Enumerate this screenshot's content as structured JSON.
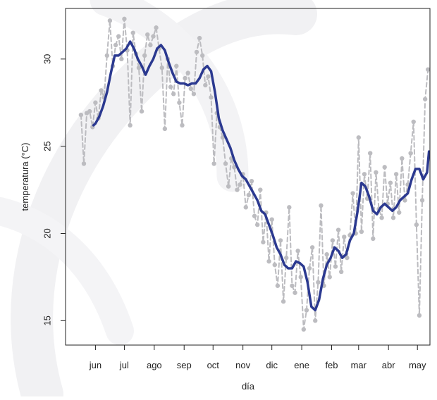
{
  "chart_data": {
    "type": "line",
    "xlabel": "día",
    "ylabel": "temperatura (°C)",
    "xlim": [
      -31,
      347
    ],
    "ylim": [
      13.6,
      32.9
    ],
    "xticks": [
      {
        "value": 0,
        "label": "jun"
      },
      {
        "value": 30,
        "label": "jul"
      },
      {
        "value": 61,
        "label": "ago"
      },
      {
        "value": 92,
        "label": "sep"
      },
      {
        "value": 122,
        "label": "oct"
      },
      {
        "value": 153,
        "label": "nov"
      },
      {
        "value": 183,
        "label": "dic"
      },
      {
        "value": 214,
        "label": "ene"
      },
      {
        "value": 245,
        "label": "feb"
      },
      {
        "value": 273,
        "label": "mar"
      },
      {
        "value": 304,
        "label": "abr"
      },
      {
        "value": 334,
        "label": "may"
      }
    ],
    "yticks": [
      15,
      20,
      25,
      30
    ],
    "series": [
      {
        "color": "#bcbcc0",
        "linestyle": "dashed",
        "marker": true,
        "x": [
          -15,
          -12,
          -9,
          -6,
          -3,
          0,
          3,
          6,
          9,
          12,
          15,
          18,
          21,
          24,
          27,
          30,
          33,
          36,
          39,
          42,
          45,
          48,
          51,
          54,
          57,
          60,
          63,
          66,
          69,
          72,
          75,
          78,
          81,
          84,
          87,
          90,
          93,
          96,
          99,
          102,
          105,
          108,
          111,
          114,
          117,
          120,
          123,
          126,
          129,
          132,
          135,
          138,
          141,
          144,
          147,
          150,
          153,
          156,
          159,
          162,
          165,
          168,
          171,
          174,
          177,
          180,
          183,
          186,
          189,
          192,
          195,
          198,
          201,
          204,
          207,
          210,
          213,
          216,
          219,
          222,
          225,
          228,
          231,
          234,
          237,
          240,
          243,
          246,
          249,
          252,
          255,
          258,
          261,
          264,
          267,
          270,
          273,
          276,
          279,
          282,
          285,
          288,
          291,
          294,
          297,
          300,
          303,
          306,
          309,
          312,
          315,
          318,
          321,
          324,
          327,
          330,
          333,
          336,
          339,
          342,
          345
        ],
        "values": [
          26.8,
          24.0,
          26.9,
          27.0,
          26.1,
          27.5,
          26.6,
          28.2,
          27.8,
          30.2,
          32.2,
          29.6,
          30.8,
          31.3,
          30.0,
          32.3,
          30.5,
          26.2,
          31.5,
          30.3,
          29.5,
          27.0,
          30.2,
          31.4,
          30.8,
          31.3,
          31.8,
          30.6,
          29.5,
          26.0,
          30.0,
          28.4,
          28.0,
          29.6,
          27.5,
          26.2,
          28.9,
          29.2,
          28.3,
          28.0,
          30.4,
          31.2,
          30.2,
          28.5,
          29.0,
          27.8,
          24.0,
          26.9,
          26.1,
          25.5,
          24.0,
          22.7,
          24.3,
          23.8,
          22.5,
          22.8,
          23.4,
          21.5,
          22.2,
          23.0,
          21.0,
          20.5,
          22.5,
          19.5,
          21.2,
          18.4,
          20.8,
          18.2,
          17.0,
          19.6,
          16.1,
          18.6,
          21.5,
          17.0,
          16.6,
          19.0,
          17.5,
          14.5,
          15.6,
          18.0,
          19.2,
          15.0,
          17.2,
          21.6,
          17.0,
          18.8,
          17.5,
          19.6,
          18.1,
          20.2,
          17.8,
          19.8,
          18.6,
          19.9,
          22.3,
          20.0,
          25.5,
          20.1,
          23.4,
          22.0,
          24.6,
          19.7,
          23.5,
          21.4,
          20.9,
          23.8,
          21.7,
          22.9,
          20.9,
          23.4,
          21.2,
          24.3,
          21.9,
          22.8,
          24.6,
          26.4,
          20.5,
          15.3,
          21.9,
          27.7,
          29.4
        ]
      },
      {
        "color": "#2b3990",
        "linestyle": "solid",
        "marker": false,
        "x": [
          -2,
          0,
          4,
          8,
          12,
          16,
          20,
          24,
          28,
          32,
          36,
          40,
          44,
          48,
          52,
          56,
          60,
          64,
          68,
          72,
          76,
          80,
          84,
          88,
          92,
          96,
          100,
          104,
          108,
          112,
          116,
          120,
          124,
          128,
          132,
          136,
          140,
          144,
          148,
          152,
          156,
          160,
          164,
          168,
          172,
          176,
          180,
          184,
          188,
          192,
          196,
          200,
          204,
          208,
          212,
          216,
          220,
          224,
          228,
          232,
          236,
          240,
          244,
          248,
          252,
          256,
          260,
          264,
          268,
          272,
          276,
          280,
          284,
          288,
          292,
          296,
          300,
          304,
          308,
          312,
          316,
          320,
          324,
          328,
          332,
          336,
          340,
          344,
          346
        ],
        "values": [
          26.2,
          26.3,
          26.7,
          27.3,
          28.1,
          29.2,
          30.2,
          30.2,
          30.4,
          30.6,
          31.0,
          30.6,
          30.0,
          29.6,
          29.1,
          29.6,
          30.0,
          30.6,
          30.8,
          30.5,
          29.8,
          29.2,
          28.7,
          28.6,
          28.6,
          28.5,
          28.6,
          28.6,
          28.9,
          29.4,
          29.6,
          29.3,
          28.1,
          26.6,
          25.9,
          25.4,
          24.9,
          24.2,
          23.7,
          23.3,
          23.1,
          22.7,
          22.3,
          21.9,
          21.3,
          21.1,
          20.5,
          19.9,
          19.2,
          18.8,
          18.2,
          18.0,
          18.0,
          18.4,
          18.3,
          18.1,
          17.2,
          15.8,
          15.6,
          16.2,
          17.4,
          18.2,
          18.6,
          19.2,
          19.0,
          18.6,
          18.8,
          19.6,
          20.0,
          21.3,
          22.9,
          22.7,
          22.1,
          21.3,
          21.1,
          21.5,
          21.7,
          21.5,
          21.3,
          21.5,
          21.9,
          22.1,
          22.3,
          23.1,
          23.7,
          23.7,
          23.1,
          23.5,
          24.7
        ]
      }
    ]
  }
}
